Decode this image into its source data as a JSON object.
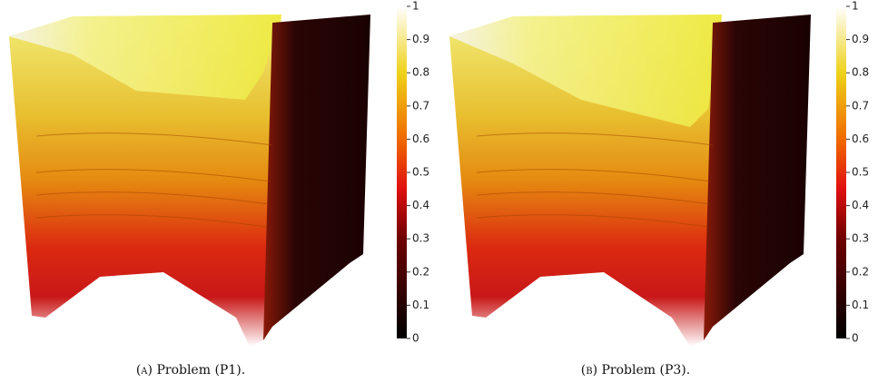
{
  "figures": [
    {
      "label": "(a)",
      "caption": "Problem (P1).",
      "colorbar": {
        "lim": [
          0,
          1
        ],
        "ticks": [
          0,
          0.1,
          0.2,
          0.3,
          0.4,
          0.5,
          0.6,
          0.7,
          0.8,
          0.9,
          1
        ]
      }
    },
    {
      "label": "(b)",
      "caption": "Problem (P3).",
      "colorbar": {
        "lim": [
          0,
          1
        ],
        "ticks": [
          0,
          0.1,
          0.2,
          0.3,
          0.4,
          0.5,
          0.6,
          0.7,
          0.8,
          0.9,
          1
        ]
      }
    }
  ]
}
